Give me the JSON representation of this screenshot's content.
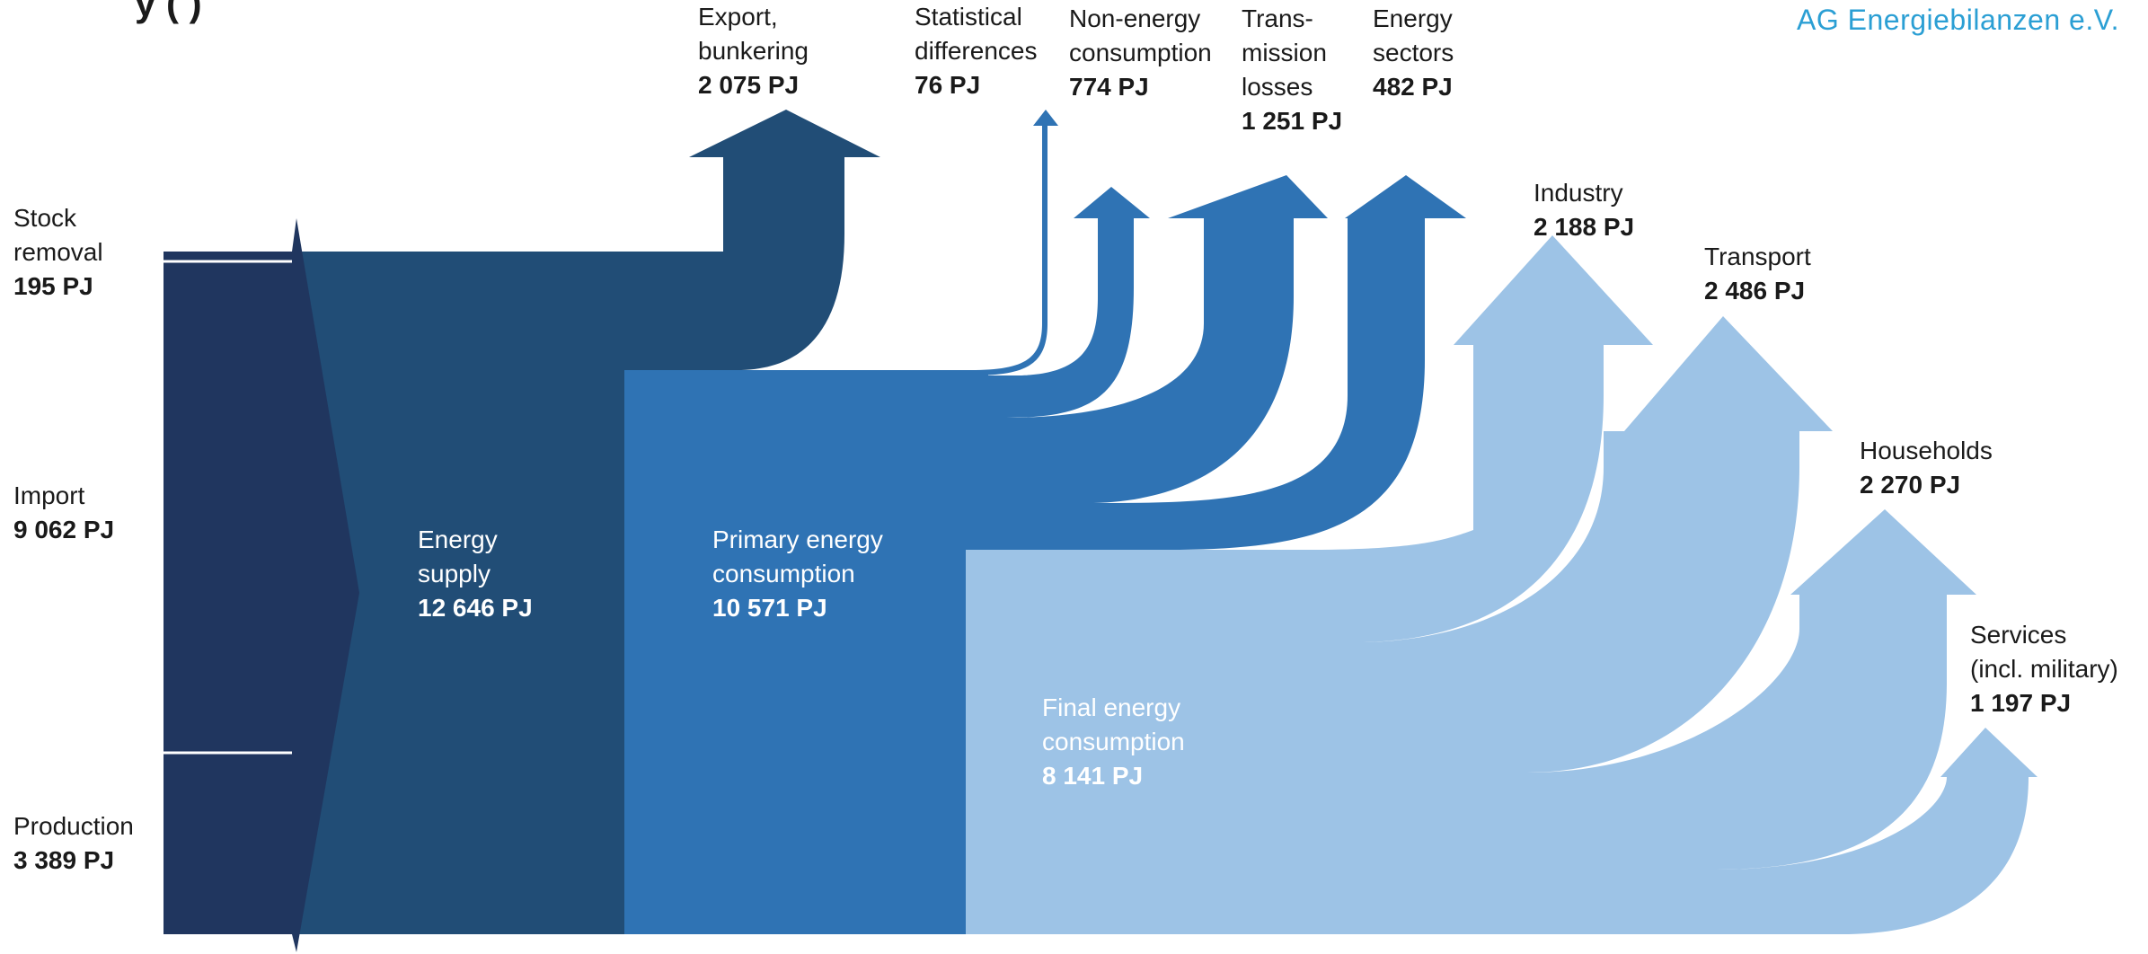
{
  "title_fragment": "y   (   )",
  "brand": "AG Energiebilanzen e.V.",
  "colors": {
    "source": "#20365f",
    "supply": "#214d76",
    "primary": "#2f73b4",
    "final": "#9dc3e6",
    "brand": "#2b9fd4"
  },
  "sources": [
    {
      "id": "stock",
      "lines": [
        "Stock",
        "removal"
      ],
      "value": "195 PJ"
    },
    {
      "id": "import",
      "lines": [
        "Import"
      ],
      "value": "9 062 PJ"
    },
    {
      "id": "production",
      "lines": [
        "Production"
      ],
      "value": "3 389 PJ"
    }
  ],
  "stages": [
    {
      "id": "supply",
      "lines": [
        "Energy",
        "supply"
      ],
      "value": "12 646 PJ"
    },
    {
      "id": "primary",
      "lines": [
        "Primary energy",
        "consumption"
      ],
      "value": "10 571 PJ"
    },
    {
      "id": "final",
      "lines": [
        "Final energy",
        "consumption"
      ],
      "value": "8 141 PJ"
    }
  ],
  "losses": [
    {
      "id": "export",
      "lines": [
        "Export,",
        "bunkering"
      ],
      "value": "2 075 PJ"
    },
    {
      "id": "statistical",
      "lines": [
        "Statistical",
        "differences"
      ],
      "value": "76 PJ"
    },
    {
      "id": "nonenergy",
      "lines": [
        "Non-energy",
        "consumption"
      ],
      "value": "774 PJ"
    },
    {
      "id": "transmission",
      "lines": [
        "Trans-",
        "mission",
        "losses"
      ],
      "value": "1 251 PJ"
    },
    {
      "id": "energysectors",
      "lines": [
        "Energy",
        "sectors"
      ],
      "value": "482 PJ"
    }
  ],
  "sectors": [
    {
      "id": "industry",
      "lines": [
        "Industry"
      ],
      "value": "2 188 PJ"
    },
    {
      "id": "transport",
      "lines": [
        "Transport"
      ],
      "value": "2 486 PJ"
    },
    {
      "id": "households",
      "lines": [
        "Households"
      ],
      "value": "2 270 PJ"
    },
    {
      "id": "services",
      "lines": [
        "Services",
        "(incl. military)"
      ],
      "value": "1 197 PJ"
    }
  ]
}
